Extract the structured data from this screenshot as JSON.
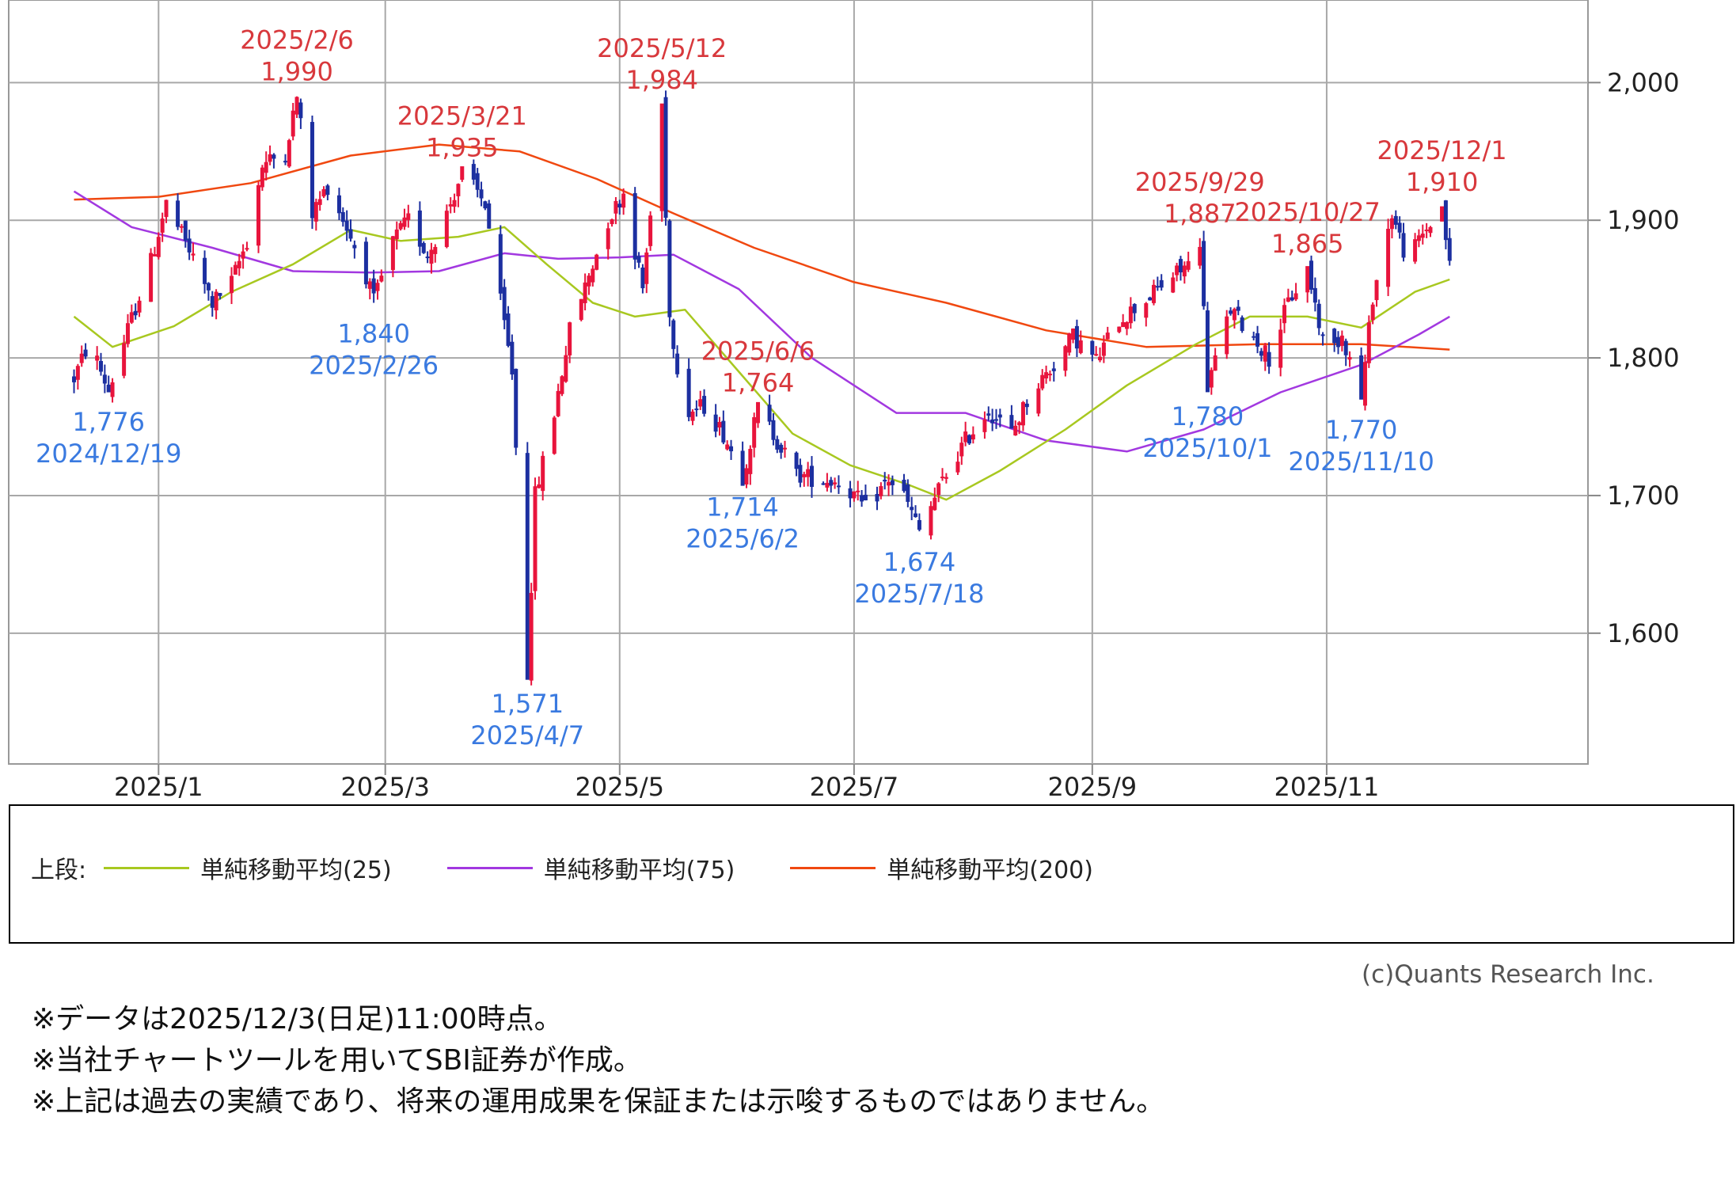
{
  "chart_data": {
    "type": "candlestick",
    "y_range": [
      1505,
      2060
    ],
    "y_ticks": [
      1600,
      1700,
      1800,
      1900,
      2000
    ],
    "y_tick_labels": [
      "1,600",
      "1,700",
      "1,800",
      "1,900",
      "2,000"
    ],
    "x_ticks": [
      {
        "date": "2025-01-01",
        "label": "2025/1"
      },
      {
        "date": "2025-03-01",
        "label": "2025/3"
      },
      {
        "date": "2025-05-01",
        "label": "2025/5"
      },
      {
        "date": "2025-07-01",
        "label": "2025/7"
      },
      {
        "date": "2025-09-01",
        "label": "2025/9"
      },
      {
        "date": "2025-11-01",
        "label": "2025/11"
      }
    ],
    "x_range": [
      "2024-11-23",
      "2026-01-08"
    ],
    "grid": true,
    "colors": {
      "up": "#e8143c",
      "down": "#1c2fa0",
      "high_label": "#d8383c",
      "low_label": "#3a7ae0",
      "ma25": "#a8c820",
      "ma75": "#a238e0",
      "ma200": "#f04810",
      "grid": "#a8a8a8"
    },
    "price_path": [
      [
        "2024-12-10",
        1785
      ],
      [
        "2024-12-14",
        1812
      ],
      [
        "2024-12-19",
        1776
      ],
      [
        "2024-12-24",
        1820
      ],
      [
        "2024-12-30",
        1870
      ],
      [
        "2025-01-03",
        1912
      ],
      [
        "2025-01-09",
        1878
      ],
      [
        "2025-01-15",
        1840
      ],
      [
        "2025-01-20",
        1855
      ],
      [
        "2025-01-24",
        1885
      ],
      [
        "2025-01-28",
        1940
      ],
      [
        "2025-02-03",
        1950
      ],
      [
        "2025-02-06",
        1990
      ],
      [
        "2025-02-10",
        1905
      ],
      [
        "2025-02-14",
        1925
      ],
      [
        "2025-02-19",
        1895
      ],
      [
        "2025-02-24",
        1860
      ],
      [
        "2025-02-26",
        1840
      ],
      [
        "2025-03-03",
        1885
      ],
      [
        "2025-03-07",
        1900
      ],
      [
        "2025-03-12",
        1875
      ],
      [
        "2025-03-17",
        1905
      ],
      [
        "2025-03-21",
        1935
      ],
      [
        "2025-03-27",
        1912
      ],
      [
        "2025-03-31",
        1840
      ],
      [
        "2025-04-03",
        1790
      ],
      [
        "2025-04-07",
        1571
      ],
      [
        "2025-04-09",
        1700
      ],
      [
        "2025-04-14",
        1760
      ],
      [
        "2025-04-18",
        1820
      ],
      [
        "2025-04-23",
        1860
      ],
      [
        "2025-04-28",
        1900
      ],
      [
        "2025-05-02",
        1920
      ],
      [
        "2025-05-07",
        1850
      ],
      [
        "2025-05-12",
        1984
      ],
      [
        "2025-05-14",
        1830
      ],
      [
        "2025-05-18",
        1760
      ],
      [
        "2025-05-23",
        1765
      ],
      [
        "2025-05-28",
        1745
      ],
      [
        "2025-06-02",
        1714
      ],
      [
        "2025-06-06",
        1764
      ],
      [
        "2025-06-11",
        1740
      ],
      [
        "2025-06-16",
        1715
      ],
      [
        "2025-06-22",
        1712
      ],
      [
        "2025-06-28",
        1710
      ],
      [
        "2025-07-04",
        1690
      ],
      [
        "2025-07-10",
        1712
      ],
      [
        "2025-07-14",
        1700
      ],
      [
        "2025-07-18",
        1674
      ],
      [
        "2025-07-24",
        1710
      ],
      [
        "2025-07-30",
        1740
      ],
      [
        "2025-08-05",
        1762
      ],
      [
        "2025-08-11",
        1745
      ],
      [
        "2025-08-16",
        1775
      ],
      [
        "2025-08-22",
        1795
      ],
      [
        "2025-08-27",
        1816
      ],
      [
        "2025-09-02",
        1798
      ],
      [
        "2025-09-08",
        1828
      ],
      [
        "2025-09-14",
        1840
      ],
      [
        "2025-09-20",
        1855
      ],
      [
        "2025-09-26",
        1868
      ],
      [
        "2025-09-29",
        1887
      ],
      [
        "2025-10-01",
        1780
      ],
      [
        "2025-10-07",
        1835
      ],
      [
        "2025-10-13",
        1815
      ],
      [
        "2025-10-17",
        1800
      ],
      [
        "2025-10-22",
        1840
      ],
      [
        "2025-10-27",
        1865
      ],
      [
        "2025-11-01",
        1800
      ],
      [
        "2025-11-05",
        1818
      ],
      [
        "2025-11-10",
        1770
      ],
      [
        "2025-11-13",
        1845
      ],
      [
        "2025-11-18",
        1905
      ],
      [
        "2025-11-22",
        1870
      ],
      [
        "2025-11-26",
        1890
      ],
      [
        "2025-12-01",
        1910
      ],
      [
        "2025-12-03",
        1866
      ]
    ],
    "ma25": [
      [
        "2024-12-10",
        1830
      ],
      [
        "2024-12-20",
        1808
      ],
      [
        "2025-01-05",
        1823
      ],
      [
        "2025-01-20",
        1848
      ],
      [
        "2025-02-05",
        1868
      ],
      [
        "2025-02-20",
        1893
      ],
      [
        "2025-03-05",
        1885
      ],
      [
        "2025-03-20",
        1888
      ],
      [
        "2025-04-01",
        1895
      ],
      [
        "2025-04-12",
        1868
      ],
      [
        "2025-04-24",
        1840
      ],
      [
        "2025-05-05",
        1830
      ],
      [
        "2025-05-18",
        1835
      ],
      [
        "2025-06-01",
        1790
      ],
      [
        "2025-06-15",
        1745
      ],
      [
        "2025-06-30",
        1722
      ],
      [
        "2025-07-15",
        1708
      ],
      [
        "2025-07-25",
        1697
      ],
      [
        "2025-08-08",
        1718
      ],
      [
        "2025-08-25",
        1748
      ],
      [
        "2025-09-10",
        1780
      ],
      [
        "2025-09-28",
        1810
      ],
      [
        "2025-10-12",
        1830
      ],
      [
        "2025-10-27",
        1830
      ],
      [
        "2025-11-10",
        1822
      ],
      [
        "2025-11-24",
        1848
      ],
      [
        "2025-12-03",
        1857
      ]
    ],
    "ma75": [
      [
        "2024-12-10",
        1921
      ],
      [
        "2024-12-25",
        1895
      ],
      [
        "2025-01-15",
        1880
      ],
      [
        "2025-02-05",
        1863
      ],
      [
        "2025-02-25",
        1862
      ],
      [
        "2025-03-15",
        1863
      ],
      [
        "2025-04-01",
        1876
      ],
      [
        "2025-04-15",
        1872
      ],
      [
        "2025-05-01",
        1873
      ],
      [
        "2025-05-15",
        1875
      ],
      [
        "2025-06-01",
        1850
      ],
      [
        "2025-06-20",
        1800
      ],
      [
        "2025-07-12",
        1760
      ],
      [
        "2025-07-30",
        1760
      ],
      [
        "2025-08-20",
        1740
      ],
      [
        "2025-09-10",
        1732
      ],
      [
        "2025-09-30",
        1748
      ],
      [
        "2025-10-20",
        1775
      ],
      [
        "2025-11-10",
        1795
      ],
      [
        "2025-11-25",
        1817
      ],
      [
        "2025-12-03",
        1830
      ]
    ],
    "ma200": [
      [
        "2024-12-10",
        1915
      ],
      [
        "2025-01-01",
        1917
      ],
      [
        "2025-01-25",
        1927
      ],
      [
        "2025-02-20",
        1947
      ],
      [
        "2025-03-15",
        1955
      ],
      [
        "2025-04-05",
        1950
      ],
      [
        "2025-04-25",
        1930
      ],
      [
        "2025-05-15",
        1905
      ],
      [
        "2025-06-05",
        1880
      ],
      [
        "2025-07-01",
        1855
      ],
      [
        "2025-07-25",
        1840
      ],
      [
        "2025-08-20",
        1820
      ],
      [
        "2025-09-15",
        1808
      ],
      [
        "2025-10-15",
        1810
      ],
      [
        "2025-11-10",
        1810
      ],
      [
        "2025-12-03",
        1806
      ]
    ],
    "annotations": {
      "highs": [
        {
          "date_label": "2025/2/6",
          "value_label": "1,990",
          "date": "2025-02-06",
          "value": 1990
        },
        {
          "date_label": "2025/3/21",
          "value_label": "1,935",
          "date": "2025-03-21",
          "value": 1935
        },
        {
          "date_label": "2025/5/12",
          "value_label": "1,984",
          "date": "2025-05-12",
          "value": 1984
        },
        {
          "date_label": "2025/6/6",
          "value_label": "1,764",
          "date": "2025-06-06",
          "value": 1764
        },
        {
          "date_label": "2025/9/29",
          "value_label": "1,887",
          "date": "2025-09-29",
          "value": 1887
        },
        {
          "date_label": "2025/10/27",
          "value_label": "1,865",
          "date": "2025-10-27",
          "value": 1865
        },
        {
          "date_label": "2025/12/1",
          "value_label": "1,910",
          "date": "2025-12-01",
          "value": 1910
        }
      ],
      "lows": [
        {
          "date_label": "2024/12/19",
          "value_label": "1,776",
          "date": "2024-12-19",
          "value": 1776
        },
        {
          "date_label": "2025/2/26",
          "value_label": "1,840",
          "date": "2025-02-26",
          "value": 1840
        },
        {
          "date_label": "2025/4/7",
          "value_label": "1,571",
          "date": "2025-04-07",
          "value": 1571
        },
        {
          "date_label": "2025/6/2",
          "value_label": "1,714",
          "date": "2025-06-02",
          "value": 1714
        },
        {
          "date_label": "2025/7/18",
          "value_label": "1,674",
          "date": "2025-07-18",
          "value": 1674
        },
        {
          "date_label": "2025/10/1",
          "value_label": "1,780",
          "date": "2025-10-01",
          "value": 1780
        },
        {
          "date_label": "2025/11/10",
          "value_label": "1,770",
          "date": "2025-11-10",
          "value": 1770
        }
      ]
    }
  },
  "legend": {
    "prefix": "上段:",
    "items": [
      {
        "label": "単純移動平均(25)",
        "color": "#a8c820"
      },
      {
        "label": "単純移動平均(75)",
        "color": "#a238e0"
      },
      {
        "label": "単純移動平均(200)",
        "color": "#f04810"
      }
    ]
  },
  "copyright": "(c)Quants Research Inc.",
  "notes": [
    "※データは2025/12/3(日足)11:00時点。",
    "※当社チャートツールを用いてSBI証券が作成。",
    "※上記は過去の実績であり、将来の運用成果を保証または示唆するものではありません。"
  ]
}
